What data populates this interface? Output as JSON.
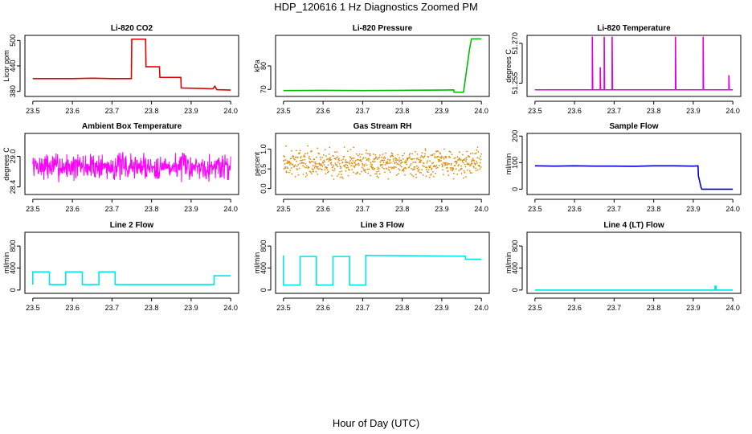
{
  "figure": {
    "title": "HDP_120616  1 Hz Diagnostics Zoomed PM",
    "xlabel": "Hour of Day (UTC)"
  },
  "chart_data": [
    {
      "type": "line",
      "title": "Li-820 CO2",
      "ylabel": "Licor ppm",
      "xlim": [
        23.48,
        24.02
      ],
      "ylim": [
        368,
        512
      ],
      "xticks": [
        "23.5",
        "23.6",
        "23.7",
        "23.8",
        "23.9",
        "24.0"
      ],
      "yticks": [
        "380",
        "440",
        "500"
      ],
      "series": [
        {
          "color": "#e00000",
          "x": [
            23.5,
            23.55,
            23.6,
            23.65,
            23.7,
            23.749,
            23.75,
            23.785,
            23.786,
            23.82,
            23.821,
            23.874,
            23.875,
            23.955,
            23.96,
            23.965,
            24.0
          ],
          "y": [
            410,
            410,
            410,
            411,
            410,
            410,
            503,
            503,
            438,
            438,
            413,
            413,
            388,
            386,
            392,
            384,
            383
          ]
        }
      ]
    },
    {
      "type": "line",
      "title": "Li-820 Pressure",
      "ylabel": "kPa",
      "xlim": [
        23.48,
        24.02
      ],
      "ylim": [
        67,
        93
      ],
      "xticks": [
        "23.5",
        "23.6",
        "23.7",
        "23.8",
        "23.9",
        "24.0"
      ],
      "yticks": [
        "70",
        "80"
      ],
      "series": [
        {
          "color": "#00bb00",
          "x": [
            23.5,
            23.6,
            23.7,
            23.8,
            23.9,
            23.93,
            23.931,
            23.955,
            23.96,
            23.97,
            23.975,
            24.0
          ],
          "y": [
            69.5,
            69.6,
            69.5,
            69.6,
            69.7,
            69.8,
            68.8,
            68.8,
            75,
            87,
            91.5,
            91.5
          ]
        }
      ]
    },
    {
      "type": "line",
      "title": "Li-820 Temperature",
      "ylabel": "degrees C",
      "xlim": [
        23.48,
        24.02
      ],
      "ylim": [
        51.25,
        51.273
      ],
      "xticks": [
        "23.5",
        "23.6",
        "23.7",
        "23.8",
        "23.9",
        "24.0"
      ],
      "yticks": [
        "51.255",
        "51.270"
      ],
      "series": [
        {
          "color": "#dd00dd",
          "x": [
            23.5,
            23.645,
            23.645,
            23.646,
            23.665,
            23.665,
            23.666,
            23.675,
            23.675,
            23.676,
            23.695,
            23.695,
            23.696,
            23.855,
            23.855,
            23.856,
            23.925,
            23.925,
            23.926,
            23.99,
            23.99,
            23.991,
            24.0
          ],
          "y": [
            51.2525,
            51.2525,
            51.2725,
            51.2525,
            51.2525,
            51.261,
            51.2525,
            51.2525,
            51.2725,
            51.2525,
            51.2525,
            51.2725,
            51.2525,
            51.2525,
            51.2725,
            51.2525,
            51.2525,
            51.2725,
            51.2525,
            51.2525,
            51.258,
            51.2525,
            51.2525
          ]
        }
      ]
    },
    {
      "type": "line",
      "title": "Ambient Box Temperature",
      "ylabel": "degrees C",
      "xlim": [
        23.48,
        24.02
      ],
      "ylim": [
        28.25,
        29.45
      ],
      "xticks": [
        "23.5",
        "23.6",
        "23.7",
        "23.8",
        "23.9",
        "24.0"
      ],
      "yticks": [
        "28.4",
        "29.0"
      ],
      "series": [
        {
          "color": "#ff00ff",
          "noise": {
            "center": 28.8,
            "amp": 0.32,
            "n": 520,
            "seed": 7
          }
        }
      ]
    },
    {
      "type": "scatter",
      "title": "Gas Stream RH",
      "ylabel": "percent",
      "xlim": [
        23.48,
        24.02
      ],
      "ylim": [
        -0.15,
        1.4
      ],
      "xticks": [
        "23.5",
        "23.6",
        "23.7",
        "23.8",
        "23.9",
        "24.0"
      ],
      "yticks": [
        "0.0",
        "0.5",
        "1.0"
      ],
      "series": [
        {
          "color": "#e08a00",
          "noise": {
            "center": 0.65,
            "amp": 0.5,
            "n": 700,
            "seed": 3
          }
        }
      ]
    },
    {
      "type": "line",
      "title": "Sample Flow",
      "ylabel": "ml/min",
      "xlim": [
        23.48,
        24.02
      ],
      "ylim": [
        -20,
        210
      ],
      "xticks": [
        "23.5",
        "23.6",
        "23.7",
        "23.8",
        "23.9",
        "24.0"
      ],
      "yticks": [
        "0",
        "100",
        "200"
      ],
      "series": [
        {
          "color": "#0000cc",
          "x": [
            23.5,
            23.55,
            23.6,
            23.65,
            23.7,
            23.75,
            23.8,
            23.85,
            23.9,
            23.912,
            23.913,
            23.92,
            23.922,
            23.95,
            24.0
          ],
          "y": [
            88,
            87,
            88,
            87,
            87,
            86,
            88,
            88,
            87,
            88,
            50,
            5,
            0,
            0,
            0
          ]
        }
      ]
    },
    {
      "type": "line",
      "title": "Line 2 Flow",
      "ylabel": "ml/min",
      "xlim": [
        23.48,
        24.02
      ],
      "ylim": [
        -60,
        1050
      ],
      "xticks": [
        "23.5",
        "23.6",
        "23.7",
        "23.8",
        "23.9",
        "24.0"
      ],
      "yticks": [
        "0",
        "400",
        "800"
      ],
      "series": [
        {
          "color": "#00e5e5",
          "x": [
            23.5,
            23.5,
            23.542,
            23.542,
            23.583,
            23.583,
            23.625,
            23.625,
            23.667,
            23.667,
            23.708,
            23.708,
            23.958,
            23.958,
            24.0
          ],
          "y": [
            100,
            330,
            330,
            100,
            100,
            330,
            330,
            100,
            100,
            330,
            330,
            100,
            100,
            260,
            260
          ]
        }
      ]
    },
    {
      "type": "line",
      "title": "Line 3 Flow",
      "ylabel": "ml/min",
      "xlim": [
        23.48,
        24.02
      ],
      "ylim": [
        -60,
        1050
      ],
      "xticks": [
        "23.5",
        "23.6",
        "23.7",
        "23.8",
        "23.9",
        "24.0"
      ],
      "yticks": [
        "0",
        "400",
        "800"
      ],
      "series": [
        {
          "color": "#00e5e5",
          "x": [
            23.5,
            23.5,
            23.502,
            23.502,
            23.542,
            23.542,
            23.583,
            23.583,
            23.625,
            23.625,
            23.667,
            23.667,
            23.708,
            23.708,
            23.96,
            23.96,
            24.0
          ],
          "y": [
            630,
            90,
            90,
            90,
            90,
            610,
            610,
            90,
            90,
            610,
            610,
            90,
            90,
            630,
            615,
            560,
            560
          ]
        }
      ]
    },
    {
      "type": "line",
      "title": "Line 4 (LT) Flow",
      "ylabel": "ml/min",
      "xlim": [
        23.48,
        24.02
      ],
      "ylim": [
        -60,
        1050
      ],
      "xticks": [
        "23.5",
        "23.6",
        "23.7",
        "23.8",
        "23.9",
        "24.0"
      ],
      "yticks": [
        "0",
        "400",
        "800"
      ],
      "series": [
        {
          "color": "#00e5e5",
          "x": [
            23.5,
            23.955,
            23.955,
            23.958,
            23.958,
            23.962,
            24.0
          ],
          "y": [
            0,
            0,
            70,
            70,
            0,
            0,
            0
          ]
        }
      ]
    }
  ]
}
